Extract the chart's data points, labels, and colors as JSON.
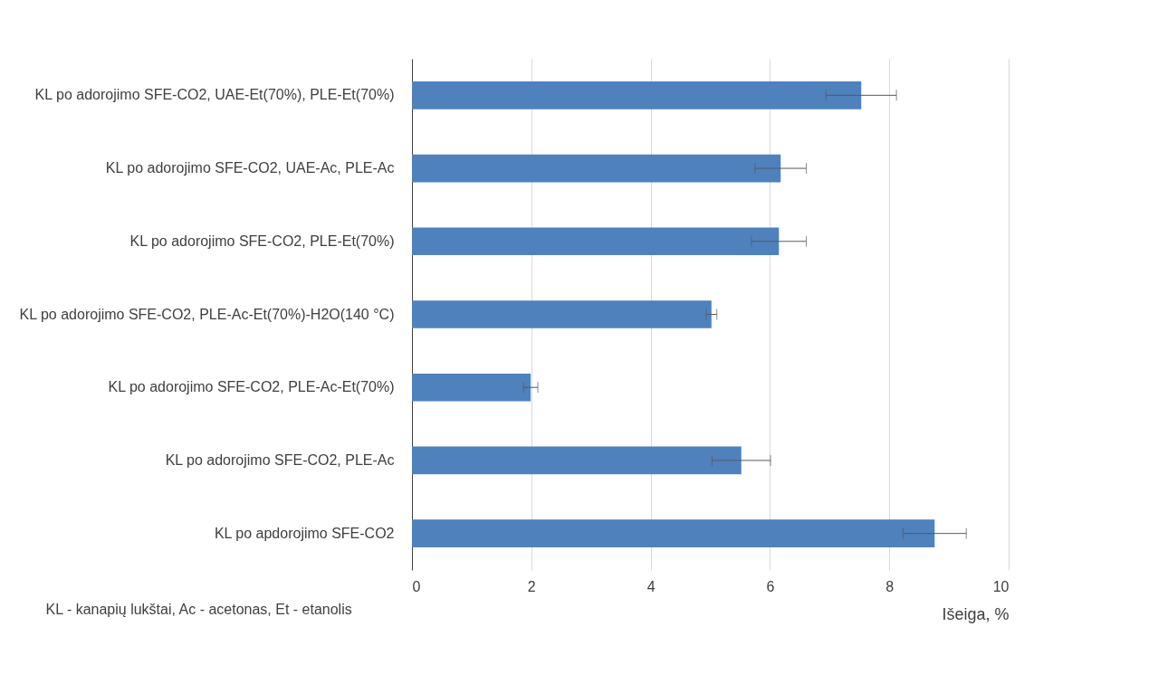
{
  "chart_data": {
    "type": "bar",
    "orientation": "horizontal",
    "xlabel": "Išeiga, %",
    "annotations": [
      "KL - kanapių lukštai, Ac - acetonas, Et - etanolis"
    ],
    "categories": [
      "KL po adorojimo SFE-CO2, UAE-Et(70%), PLE-Et(70%)",
      "KL po adorojimo SFE-CO2, UAE-Ac, PLE-Ac",
      "KL po adorojimo SFE-CO2, PLE-Et(70%)",
      "KL po adorojimo SFE-CO2, PLE-Ac-Et(70%)-H2O(140 °C)",
      "KL po adorojimo SFE-CO2, PLE-Ac-Et(70%)",
      "KL po adorojimo SFE-CO2, PLE-Ac",
      "KL po apdorojimo SFE-CO2"
    ],
    "values": [
      7.53,
      6.18,
      6.15,
      5.02,
      1.99,
      5.52,
      8.76
    ],
    "errors": [
      0.59,
      0.43,
      0.46,
      0.09,
      0.12,
      0.49,
      0.53
    ],
    "color": "#4f81bd",
    "xlim": [
      0,
      10
    ],
    "xticks": [
      0,
      2,
      4,
      6,
      8,
      10
    ],
    "grid": "x"
  }
}
